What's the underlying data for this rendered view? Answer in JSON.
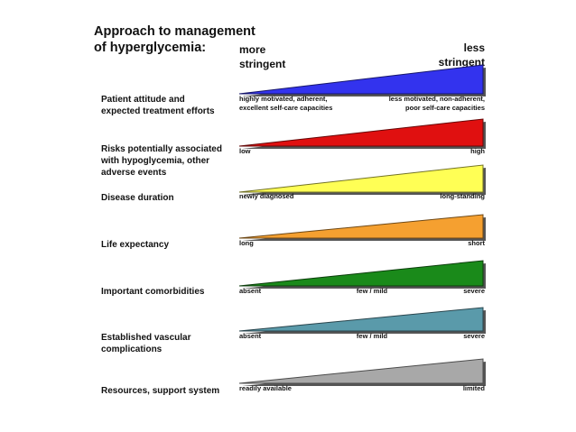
{
  "title": "Approach to management\nof hyperglycemia:",
  "header": {
    "more": "more\nstringent",
    "less": "less\nstringent"
  },
  "rows": [
    {
      "label": "Patient attitude and\nexpected treatment efforts",
      "left": "highly motivated, adherent,\nexcellent self-care capacities",
      "mid": "",
      "right": "less motivated, non-adherent,\npoor self-care capacities",
      "color": "#3333ee"
    },
    {
      "label": "Risks potentially associated\nwith hypoglycemia, other\nadverse events",
      "left": "low",
      "mid": "",
      "right": "high",
      "color": "#e01010"
    },
    {
      "label": "Disease duration",
      "left": "newly diagnosed",
      "mid": "",
      "right": "long-standing",
      "color": "#ffff55"
    },
    {
      "label": "Life expectancy",
      "left": "long",
      "mid": "",
      "right": "short",
      "color": "#f5a030"
    },
    {
      "label": "Important comorbidities",
      "left": "absent",
      "mid": "few / mild",
      "right": "severe",
      "color": "#1a8a1a"
    },
    {
      "label": "Established vascular\ncomplications",
      "left": "absent",
      "mid": "few / mild",
      "right": "severe",
      "color": "#5a9aaa"
    },
    {
      "label": "Resources, support system",
      "left": "readily available",
      "mid": "",
      "right": "limited",
      "color": "#a8a8a8"
    }
  ]
}
